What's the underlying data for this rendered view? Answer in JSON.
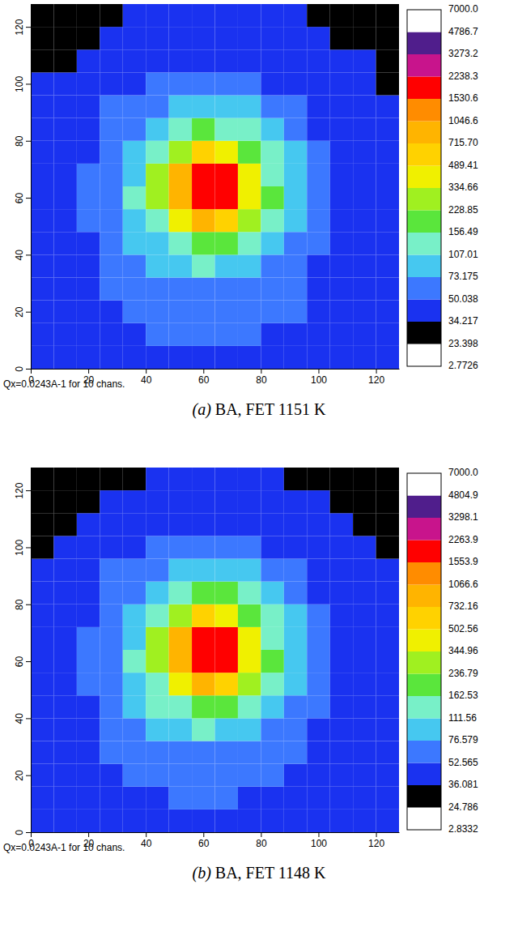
{
  "chart_data": [
    {
      "type": "heatmap",
      "caption": "(a) BA, FET 1151 K",
      "annotation": "Qx=0.0243A-1 for 10 chans.",
      "xlim": [
        0,
        128
      ],
      "ylim": [
        0,
        128
      ],
      "xticks": [
        0,
        20,
        40,
        60,
        80,
        100,
        120
      ],
      "yticks": [
        0,
        20,
        40,
        60,
        80,
        100,
        120
      ],
      "xbins": [
        0,
        8,
        16,
        24,
        32,
        40,
        48,
        56,
        64,
        72,
        80,
        88,
        96,
        104,
        112,
        120,
        128
      ],
      "ybins": [
        0,
        8,
        16,
        24,
        32,
        40,
        48,
        56,
        64,
        72,
        80,
        88,
        96,
        104,
        112,
        120,
        128
      ],
      "cells": [
        [
          40,
          41,
          43,
          45,
          46,
          48,
          49,
          50,
          49,
          48,
          47,
          45,
          44,
          42,
          41,
          40
        ],
        [
          41,
          43,
          45,
          47,
          49,
          51,
          52,
          53,
          52,
          51,
          49,
          47,
          45,
          43,
          41,
          40
        ],
        [
          42,
          44,
          47,
          50,
          53,
          56,
          58,
          60,
          58,
          57,
          54,
          51,
          47,
          44,
          42,
          40
        ],
        [
          43,
          45,
          48,
          52,
          56,
          62,
          66,
          70,
          68,
          64,
          58,
          53,
          48,
          45,
          42,
          40
        ],
        [
          42,
          45,
          49,
          55,
          64,
          80,
          95,
          110,
          105,
          92,
          68,
          57,
          49,
          45,
          42,
          40
        ],
        [
          42,
          46,
          50,
          58,
          76,
          105,
          150,
          210,
          200,
          130,
          88,
          62,
          52,
          46,
          42,
          39
        ],
        [
          42,
          47,
          52,
          60,
          85,
          150,
          460,
          780,
          620,
          250,
          115,
          78,
          58,
          47,
          42,
          38
        ],
        [
          42,
          46,
          55,
          62,
          110,
          250,
          800,
          1900,
          1900,
          480,
          160,
          80,
          60,
          48,
          42,
          38
        ],
        [
          42,
          46,
          55,
          62,
          105,
          240,
          780,
          1900,
          1800,
          460,
          155,
          80,
          60,
          48,
          42,
          38
        ],
        [
          40,
          45,
          50,
          58,
          82,
          150,
          300,
          520,
          450,
          220,
          110,
          75,
          58,
          46,
          41,
          37
        ],
        [
          39,
          43,
          48,
          56,
          72,
          98,
          130,
          160,
          155,
          115,
          82,
          60,
          50,
          44,
          40,
          37
        ],
        [
          38,
          41,
          46,
          52,
          58,
          70,
          82,
          88,
          86,
          75,
          62,
          55,
          48,
          43,
          39,
          36
        ],
        [
          35,
          37,
          41,
          46,
          50,
          55,
          58,
          60,
          58,
          55,
          50,
          47,
          44,
          40,
          37,
          34
        ],
        [
          32,
          34,
          37,
          40,
          43,
          46,
          48,
          50,
          49,
          47,
          44,
          42,
          40,
          37,
          35,
          33
        ],
        [
          30,
          31,
          33,
          36,
          38,
          40,
          42,
          42,
          41,
          40,
          39,
          37,
          36,
          34,
          32,
          31
        ],
        [
          28,
          29,
          31,
          33,
          35,
          36,
          37,
          38,
          37,
          36,
          36,
          35,
          33,
          31,
          30,
          29
        ]
      ],
      "colorbar": {
        "ticks": [
          2.7726,
          23.398,
          34.217,
          50.038,
          73.175,
          107.01,
          156.49,
          228.85,
          334.66,
          489.41,
          {
            "value": 715.7,
            "label": "715.70"
          },
          1046.6,
          1530.6,
          2238.3,
          3273.2,
          4786.7,
          {
            "value": 7000,
            "label": "7000.0"
          }
        ],
        "colors": [
          "#ffffff",
          "#000000",
          "#1a32f0",
          "#3c78ff",
          "#46c8f0",
          "#78f0c8",
          "#5ae63c",
          "#a0f020",
          "#f0f000",
          "#ffd200",
          "#ffb400",
          "#ff8c00",
          "#ff0000",
          "#c8148c",
          "#501e8c",
          "#ffffff"
        ]
      }
    },
    {
      "type": "heatmap",
      "caption": "(b) BA, FET 1148 K",
      "annotation": "Qx=0.0243A-1 for 10 chans.",
      "xlim": [
        0,
        128
      ],
      "ylim": [
        0,
        128
      ],
      "xticks": [
        0,
        20,
        40,
        60,
        80,
        100,
        120
      ],
      "yticks": [
        0,
        20,
        40,
        60,
        80,
        100,
        120
      ],
      "xbins": [
        0,
        8,
        16,
        24,
        32,
        40,
        48,
        56,
        64,
        72,
        80,
        88,
        96,
        104,
        112,
        120,
        128
      ],
      "ybins": [
        0,
        8,
        16,
        24,
        32,
        40,
        48,
        56,
        64,
        72,
        80,
        88,
        96,
        104,
        112,
        120,
        128
      ],
      "cells": [
        [
          41,
          42,
          44,
          46,
          47,
          49,
          50,
          51,
          50,
          49,
          48,
          46,
          45,
          43,
          42,
          41
        ],
        [
          42,
          44,
          46,
          48,
          50,
          52,
          53,
          55,
          53,
          52,
          50,
          48,
          46,
          44,
          42,
          41
        ],
        [
          43,
          45,
          48,
          51,
          54,
          57,
          60,
          62,
          60,
          58,
          55,
          52,
          48,
          45,
          43,
          41
        ],
        [
          44,
          46,
          49,
          53,
          58,
          64,
          68,
          72,
          70,
          66,
          60,
          54,
          49,
          46,
          43,
          41
        ],
        [
          43,
          46,
          50,
          56,
          66,
          84,
          100,
          115,
          110,
          96,
          70,
          58,
          50,
          46,
          43,
          41
        ],
        [
          43,
          47,
          51,
          60,
          78,
          112,
          160,
          225,
          215,
          140,
          92,
          64,
          53,
          47,
          43,
          40
        ],
        [
          43,
          48,
          53,
          62,
          88,
          160,
          480,
          800,
          650,
          265,
          120,
          80,
          59,
          48,
          43,
          39
        ],
        [
          43,
          47,
          56,
          64,
          115,
          265,
          820,
          1950,
          1950,
          500,
          168,
          82,
          61,
          49,
          43,
          39
        ],
        [
          43,
          47,
          56,
          64,
          110,
          255,
          800,
          1950,
          1850,
          480,
          162,
          82,
          61,
          49,
          43,
          39
        ],
        [
          41,
          46,
          51,
          60,
          85,
          160,
          320,
          540,
          470,
          232,
          115,
          77,
          59,
          47,
          42,
          38
        ],
        [
          40,
          44,
          49,
          57,
          75,
          104,
          138,
          170,
          165,
          120,
          85,
          62,
          51,
          45,
          41,
          38
        ],
        [
          39,
          42,
          47,
          53,
          60,
          73,
          86,
          92,
          90,
          78,
          64,
          56,
          49,
          44,
          40,
          37
        ],
        [
          36,
          38,
          42,
          47,
          52,
          57,
          60,
          62,
          60,
          57,
          52,
          48,
          45,
          41,
          38,
          35
        ],
        [
          33,
          35,
          38,
          41,
          44,
          47,
          49,
          51,
          50,
          48,
          45,
          43,
          41,
          38,
          36,
          34
        ],
        [
          31,
          32,
          34,
          37,
          39,
          41,
          43,
          43,
          42,
          41,
          40,
          38,
          37,
          35,
          33,
          32
        ],
        [
          29,
          30,
          32,
          34,
          36,
          37,
          38,
          39,
          38,
          37,
          37,
          36,
          34,
          32,
          31,
          30
        ]
      ],
      "colorbar": {
        "ticks": [
          2.8332,
          24.786,
          36.081,
          52.565,
          76.579,
          111.56,
          162.53,
          236.79,
          344.96,
          502.56,
          732.16,
          1066.6,
          1553.9,
          2263.9,
          3298.1,
          4804.9,
          {
            "value": 7000,
            "label": "7000.0"
          }
        ],
        "colors": [
          "#ffffff",
          "#000000",
          "#1a32f0",
          "#3c78ff",
          "#46c8f0",
          "#78f0c8",
          "#5ae63c",
          "#a0f020",
          "#f0f000",
          "#ffd200",
          "#ffb400",
          "#ff8c00",
          "#ff0000",
          "#c8148c",
          "#501e8c",
          "#ffffff"
        ]
      }
    }
  ]
}
